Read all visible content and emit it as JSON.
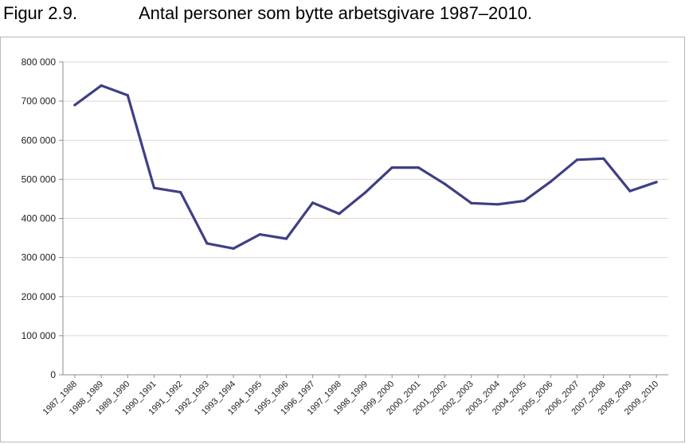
{
  "figure": {
    "number": "Figur 2.9.",
    "title": "Antal personer som bytte arbetsgivare 1987–2010."
  },
  "colors": {
    "line": "#3f3f86",
    "grid": "#e2d6cc",
    "axis": "#8c8c8c",
    "frame": "#b8b8b8"
  },
  "chart_data": {
    "type": "line",
    "title": "Antal personer som bytte arbetsgivare 1987–2010.",
    "xlabel": "",
    "ylabel": "",
    "ylim": [
      0,
      800000
    ],
    "grid": true,
    "legend": "none",
    "yticks": [
      0,
      100000,
      200000,
      300000,
      400000,
      500000,
      600000,
      700000,
      800000
    ],
    "ytick_labels": [
      "0",
      "100 000",
      "200 000",
      "300 000",
      "400 000",
      "500 000",
      "600 000",
      "700 000",
      "800 000"
    ],
    "categories": [
      "1987_1988",
      "1988_1989",
      "1989_1990",
      "1990_1991",
      "1991_1992",
      "1992_1993",
      "1993_1994",
      "1994_1995",
      "1995_1996",
      "1996_1997",
      "1997_1998",
      "1998_1999",
      "1999_2000",
      "2000_2001",
      "2001_2002",
      "2002_2003",
      "2003_2004",
      "2004_2005",
      "2005_2006",
      "2006_2007",
      "2007_2008",
      "2008_2009",
      "2009_2010"
    ],
    "series": [
      {
        "values": [
          690000,
          740000,
          715000,
          478000,
          467000,
          336000,
          323000,
          359000,
          348000,
          440000,
          412000,
          467000,
          530000,
          530000,
          488000,
          439000,
          436000,
          445000,
          494000,
          550000,
          553000,
          470000,
          493000
        ]
      }
    ]
  }
}
